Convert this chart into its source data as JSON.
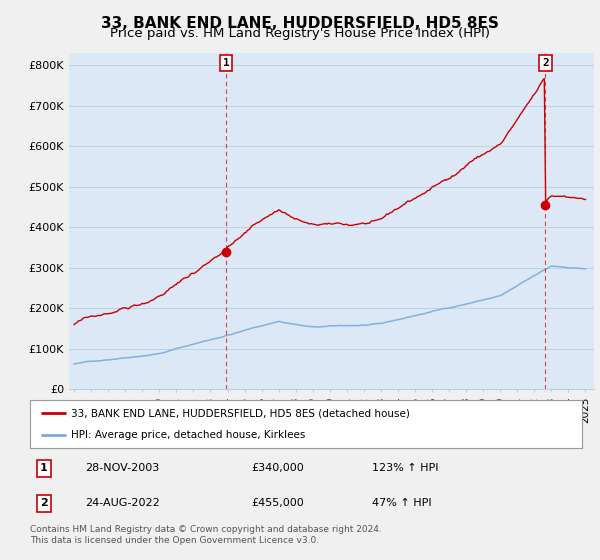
{
  "title": "33, BANK END LANE, HUDDERSFIELD, HD5 8ES",
  "subtitle": "Price paid vs. HM Land Registry's House Price Index (HPI)",
  "ylim": [
    0,
    830000
  ],
  "yticks": [
    0,
    100000,
    200000,
    300000,
    400000,
    500000,
    600000,
    700000,
    800000
  ],
  "ytick_labels": [
    "£0",
    "£100K",
    "£200K",
    "£300K",
    "£400K",
    "£500K",
    "£600K",
    "£700K",
    "£800K"
  ],
  "hpi_color": "#7aaadd",
  "price_color": "#cc0000",
  "sale1_year": 2003.91,
  "sale1_price": 340000,
  "sale2_year": 2022.65,
  "sale2_price": 455000,
  "legend1": "33, BANK END LANE, HUDDERSFIELD, HD5 8ES (detached house)",
  "legend2": "HPI: Average price, detached house, Kirklees",
  "table": [
    {
      "num": "1",
      "date": "28-NOV-2003",
      "price": "£340,000",
      "hpi": "123% ↑ HPI"
    },
    {
      "num": "2",
      "date": "24-AUG-2022",
      "price": "£455,000",
      "hpi": "47% ↑ HPI"
    }
  ],
  "footer": "Contains HM Land Registry data © Crown copyright and database right 2024.\nThis data is licensed under the Open Government Licence v3.0.",
  "bg_color": "#dce8f5",
  "fig_color": "#f0f0f0",
  "grid_color": "#b8cfe0",
  "title_fontsize": 11,
  "subtitle_fontsize": 9.5,
  "tick_fontsize": 8
}
